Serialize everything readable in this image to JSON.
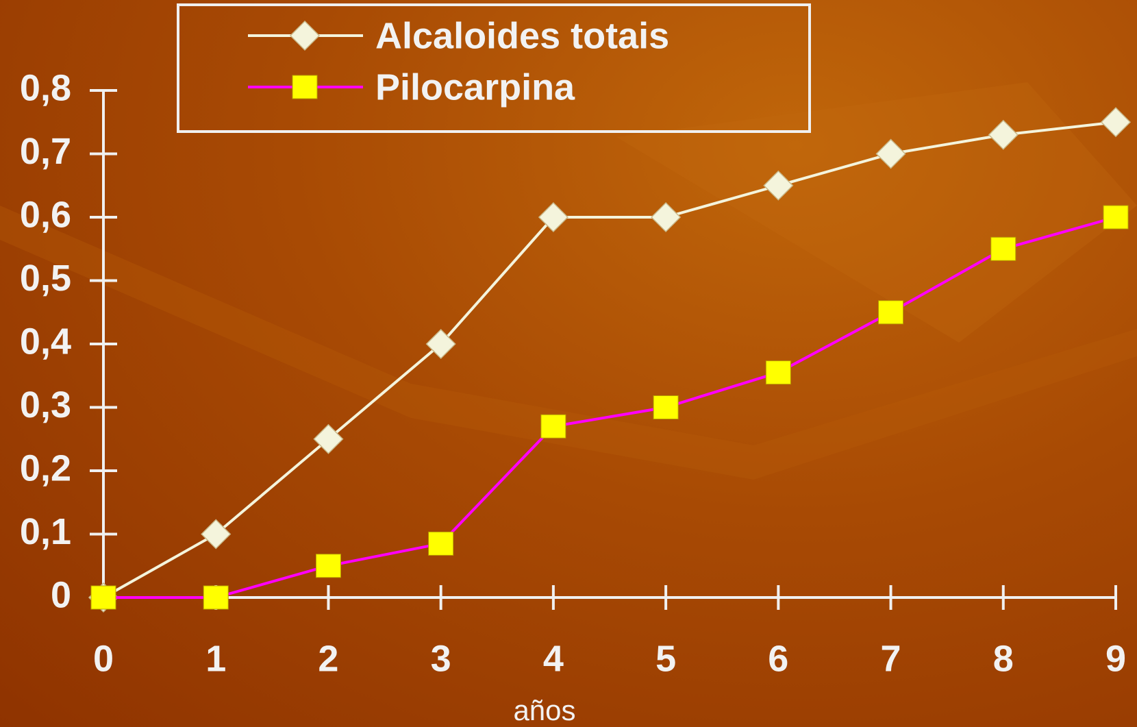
{
  "chart_data": {
    "type": "line",
    "x": [
      0,
      1,
      2,
      3,
      4,
      5,
      6,
      7,
      8,
      9
    ],
    "series": [
      {
        "name": "Alcaloides totais",
        "color": "#f4f4dc",
        "marker": "diamond",
        "marker_color": "#f4f4dc",
        "values": [
          0,
          0.1,
          0.25,
          0.4,
          0.6,
          0.6,
          0.65,
          0.7,
          0.73,
          0.75
        ]
      },
      {
        "name": "Pilocarpina",
        "color": "#ff00ff",
        "marker": "square",
        "marker_color": "#ffff00",
        "values": [
          0,
          0,
          0.05,
          0.085,
          0.27,
          0.3,
          0.355,
          0.45,
          0.55,
          0.6
        ]
      }
    ],
    "xlim": [
      0,
      9
    ],
    "xticks": [
      0,
      1,
      2,
      3,
      4,
      5,
      6,
      7,
      8,
      9
    ],
    "ylim": [
      0,
      0.8
    ],
    "yticks": [
      0,
      {
        "value": 0.1,
        "label": "0,1"
      },
      {
        "value": 0.2,
        "label": "0,2"
      },
      {
        "value": 0.3,
        "label": "0,3"
      },
      {
        "value": 0.4,
        "label": "0,4"
      },
      {
        "value": 0.5,
        "label": "0,5"
      },
      {
        "value": 0.6,
        "label": "0,6"
      },
      {
        "value": 0.7,
        "label": "0,7"
      },
      {
        "value": 0.8,
        "label": "0,8"
      }
    ],
    "xlabel": "años",
    "legend": "top"
  }
}
